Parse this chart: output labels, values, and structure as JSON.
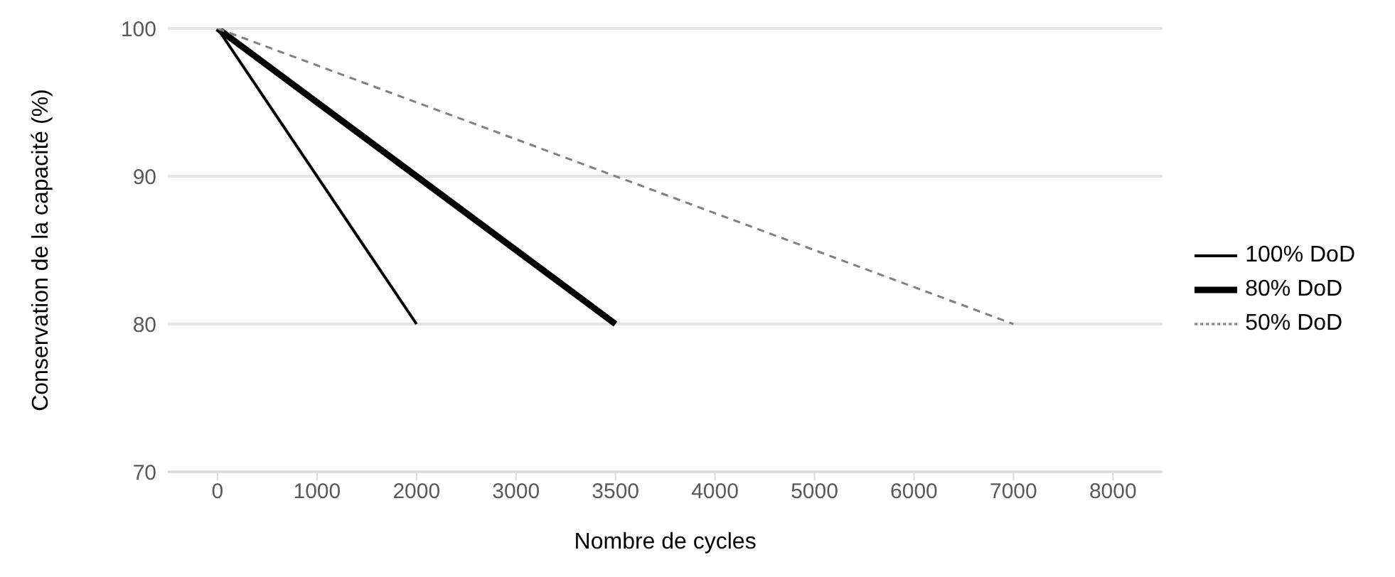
{
  "chart_data": {
    "type": "line",
    "xlabel": "Nombre de cycles",
    "ylabel": "Conservation de la capacité (%)",
    "categories": [
      "0",
      "1000",
      "2000",
      "3000",
      "3500",
      "4000",
      "5000",
      "6000",
      "7000",
      "8000"
    ],
    "series": [
      {
        "name": "100% DoD",
        "color": "#000000",
        "line_style": "solid",
        "values": [
          100,
          null,
          80,
          null,
          null,
          null,
          null,
          null,
          null,
          null
        ]
      },
      {
        "name": "80% DoD",
        "color": "#000000",
        "line_style": "solid",
        "values": [
          100,
          null,
          null,
          null,
          80,
          null,
          null,
          null,
          null,
          null
        ]
      },
      {
        "name": "50% DoD",
        "color": "#808080",
        "line_style": "dashed",
        "values": [
          100,
          null,
          null,
          null,
          null,
          null,
          null,
          null,
          80,
          null
        ]
      }
    ],
    "ylim": [
      70,
      100
    ],
    "yticks": [
      70,
      80,
      90,
      100
    ],
    "grid": "y",
    "legend": "right",
    "marker": "none"
  }
}
